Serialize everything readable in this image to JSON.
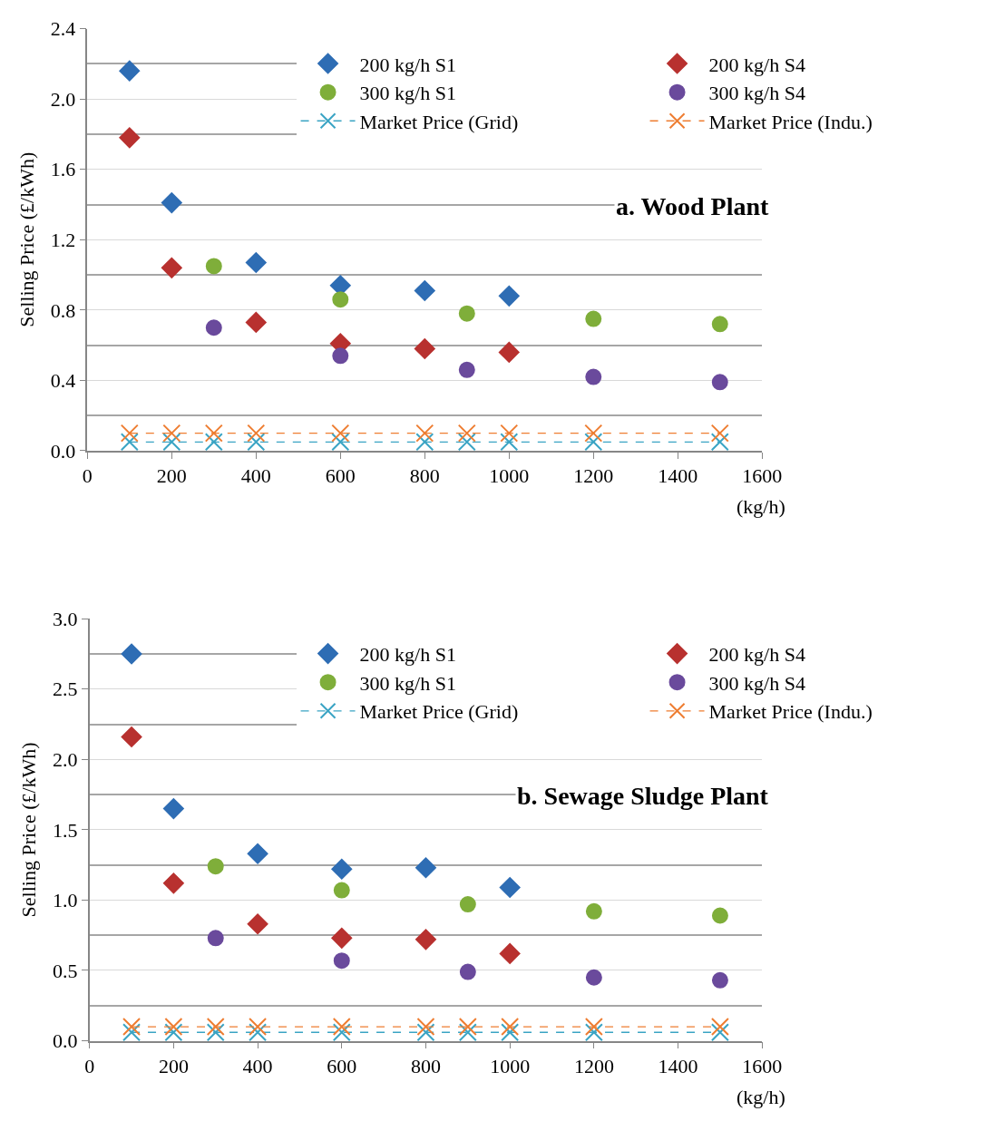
{
  "chart_data": [
    {
      "type": "scatter",
      "title": "a. Wood Plant",
      "xlabel": "(kg/h)",
      "ylabel": "Selling Price (£/kWh)",
      "xlim": [
        0,
        1600
      ],
      "xticks": [
        0,
        200,
        400,
        600,
        800,
        1000,
        1200,
        1400,
        1600
      ],
      "ylim": [
        0,
        2.4
      ],
      "yticks": [
        {
          "value": 0,
          "label": "0.0"
        },
        0.4,
        0.8,
        1.2,
        1.6,
        {
          "value": 2,
          "label": "2.0"
        },
        2.4
      ],
      "grid": "y",
      "legend": "top right",
      "series": [
        {
          "name": "200 kg/h S1",
          "color": "#2e6db4",
          "marker": "diamond",
          "x": [
            100,
            200,
            400,
            600,
            800,
            1000
          ],
          "values": [
            2.16,
            1.41,
            1.07,
            0.94,
            0.91,
            0.88
          ]
        },
        {
          "name": "200 kg/h S4",
          "color": "#b8312f",
          "marker": "diamond",
          "x": [
            100,
            200,
            400,
            600,
            800,
            1000
          ],
          "values": [
            1.78,
            1.04,
            0.73,
            0.61,
            0.58,
            0.56
          ]
        },
        {
          "name": "300 kg/h S1",
          "color": "#7fae3a",
          "marker": "circle",
          "x": [
            300,
            600,
            900,
            1200,
            1500
          ],
          "values": [
            1.05,
            0.86,
            0.78,
            0.75,
            0.72
          ]
        },
        {
          "name": "300 kg/h S4",
          "color": "#6a4a9c",
          "marker": "circle",
          "x": [
            300,
            600,
            900,
            1200,
            1500
          ],
          "values": [
            0.7,
            0.54,
            0.46,
            0.42,
            0.39
          ]
        },
        {
          "name": "Market Price (Grid)",
          "type": "line",
          "color": "#3aa4c4",
          "marker": "cross",
          "line_style": "dashed",
          "x": [
            100,
            200,
            300,
            400,
            600,
            800,
            900,
            1000,
            1200,
            1500
          ],
          "values": [
            0.05,
            0.05,
            0.05,
            0.05,
            0.05,
            0.05,
            0.05,
            0.05,
            0.05,
            0.05
          ]
        },
        {
          "name": "Market Price (Indu.)",
          "type": "line",
          "color": "#ee7d31",
          "marker": "cross",
          "line_style": "dashed",
          "x": [
            100,
            200,
            300,
            400,
            600,
            800,
            900,
            1000,
            1200,
            1500
          ],
          "values": [
            0.1,
            0.1,
            0.1,
            0.1,
            0.1,
            0.1,
            0.1,
            0.1,
            0.1,
            0.1
          ]
        }
      ]
    },
    {
      "type": "scatter",
      "title": "b. Sewage Sludge Plant",
      "xlabel": "(kg/h)",
      "ylabel": "Selling Price (£/kWh)",
      "xlim": [
        0,
        1600
      ],
      "xticks": [
        0,
        200,
        400,
        600,
        800,
        1000,
        1200,
        1400,
        1600
      ],
      "ylim": [
        0,
        3.0
      ],
      "yticks": [
        {
          "value": 0,
          "label": "0.0"
        },
        0.5,
        {
          "value": 1,
          "label": "1.0"
        },
        1.5,
        {
          "value": 2,
          "label": "2.0"
        },
        2.5,
        {
          "value": 3,
          "label": "3.0"
        }
      ],
      "grid": "y",
      "legend": "top right",
      "series": [
        {
          "name": "200 kg/h S1",
          "color": "#2e6db4",
          "marker": "diamond",
          "x": [
            100,
            200,
            400,
            600,
            800,
            1000
          ],
          "values": [
            2.75,
            1.65,
            1.33,
            1.22,
            1.23,
            1.09
          ]
        },
        {
          "name": "200 kg/h S4",
          "color": "#b8312f",
          "marker": "diamond",
          "x": [
            100,
            200,
            400,
            600,
            800,
            1000
          ],
          "values": [
            2.16,
            1.12,
            0.83,
            0.73,
            0.72,
            0.62
          ]
        },
        {
          "name": "300 kg/h S1",
          "color": "#7fae3a",
          "marker": "circle",
          "x": [
            300,
            600,
            900,
            1200,
            1500
          ],
          "values": [
            1.24,
            1.07,
            0.97,
            0.92,
            0.89
          ]
        },
        {
          "name": "300 kg/h S4",
          "color": "#6a4a9c",
          "marker": "circle",
          "x": [
            300,
            600,
            900,
            1200,
            1500
          ],
          "values": [
            0.73,
            0.57,
            0.49,
            0.45,
            0.43
          ]
        },
        {
          "name": "Market Price (Grid)",
          "type": "line",
          "color": "#3aa4c4",
          "marker": "cross",
          "line_style": "dashed",
          "x": [
            100,
            200,
            300,
            400,
            600,
            800,
            900,
            1000,
            1200,
            1500
          ],
          "values": [
            0.06,
            0.06,
            0.06,
            0.06,
            0.06,
            0.06,
            0.06,
            0.06,
            0.06,
            0.06
          ]
        },
        {
          "name": "Market Price (Indu.)",
          "type": "line",
          "color": "#ee7d31",
          "marker": "cross",
          "line_style": "dashed",
          "x": [
            100,
            200,
            300,
            400,
            600,
            800,
            900,
            1000,
            1200,
            1500
          ],
          "values": [
            0.1,
            0.1,
            0.1,
            0.1,
            0.1,
            0.1,
            0.1,
            0.1,
            0.1,
            0.1
          ]
        }
      ]
    }
  ]
}
